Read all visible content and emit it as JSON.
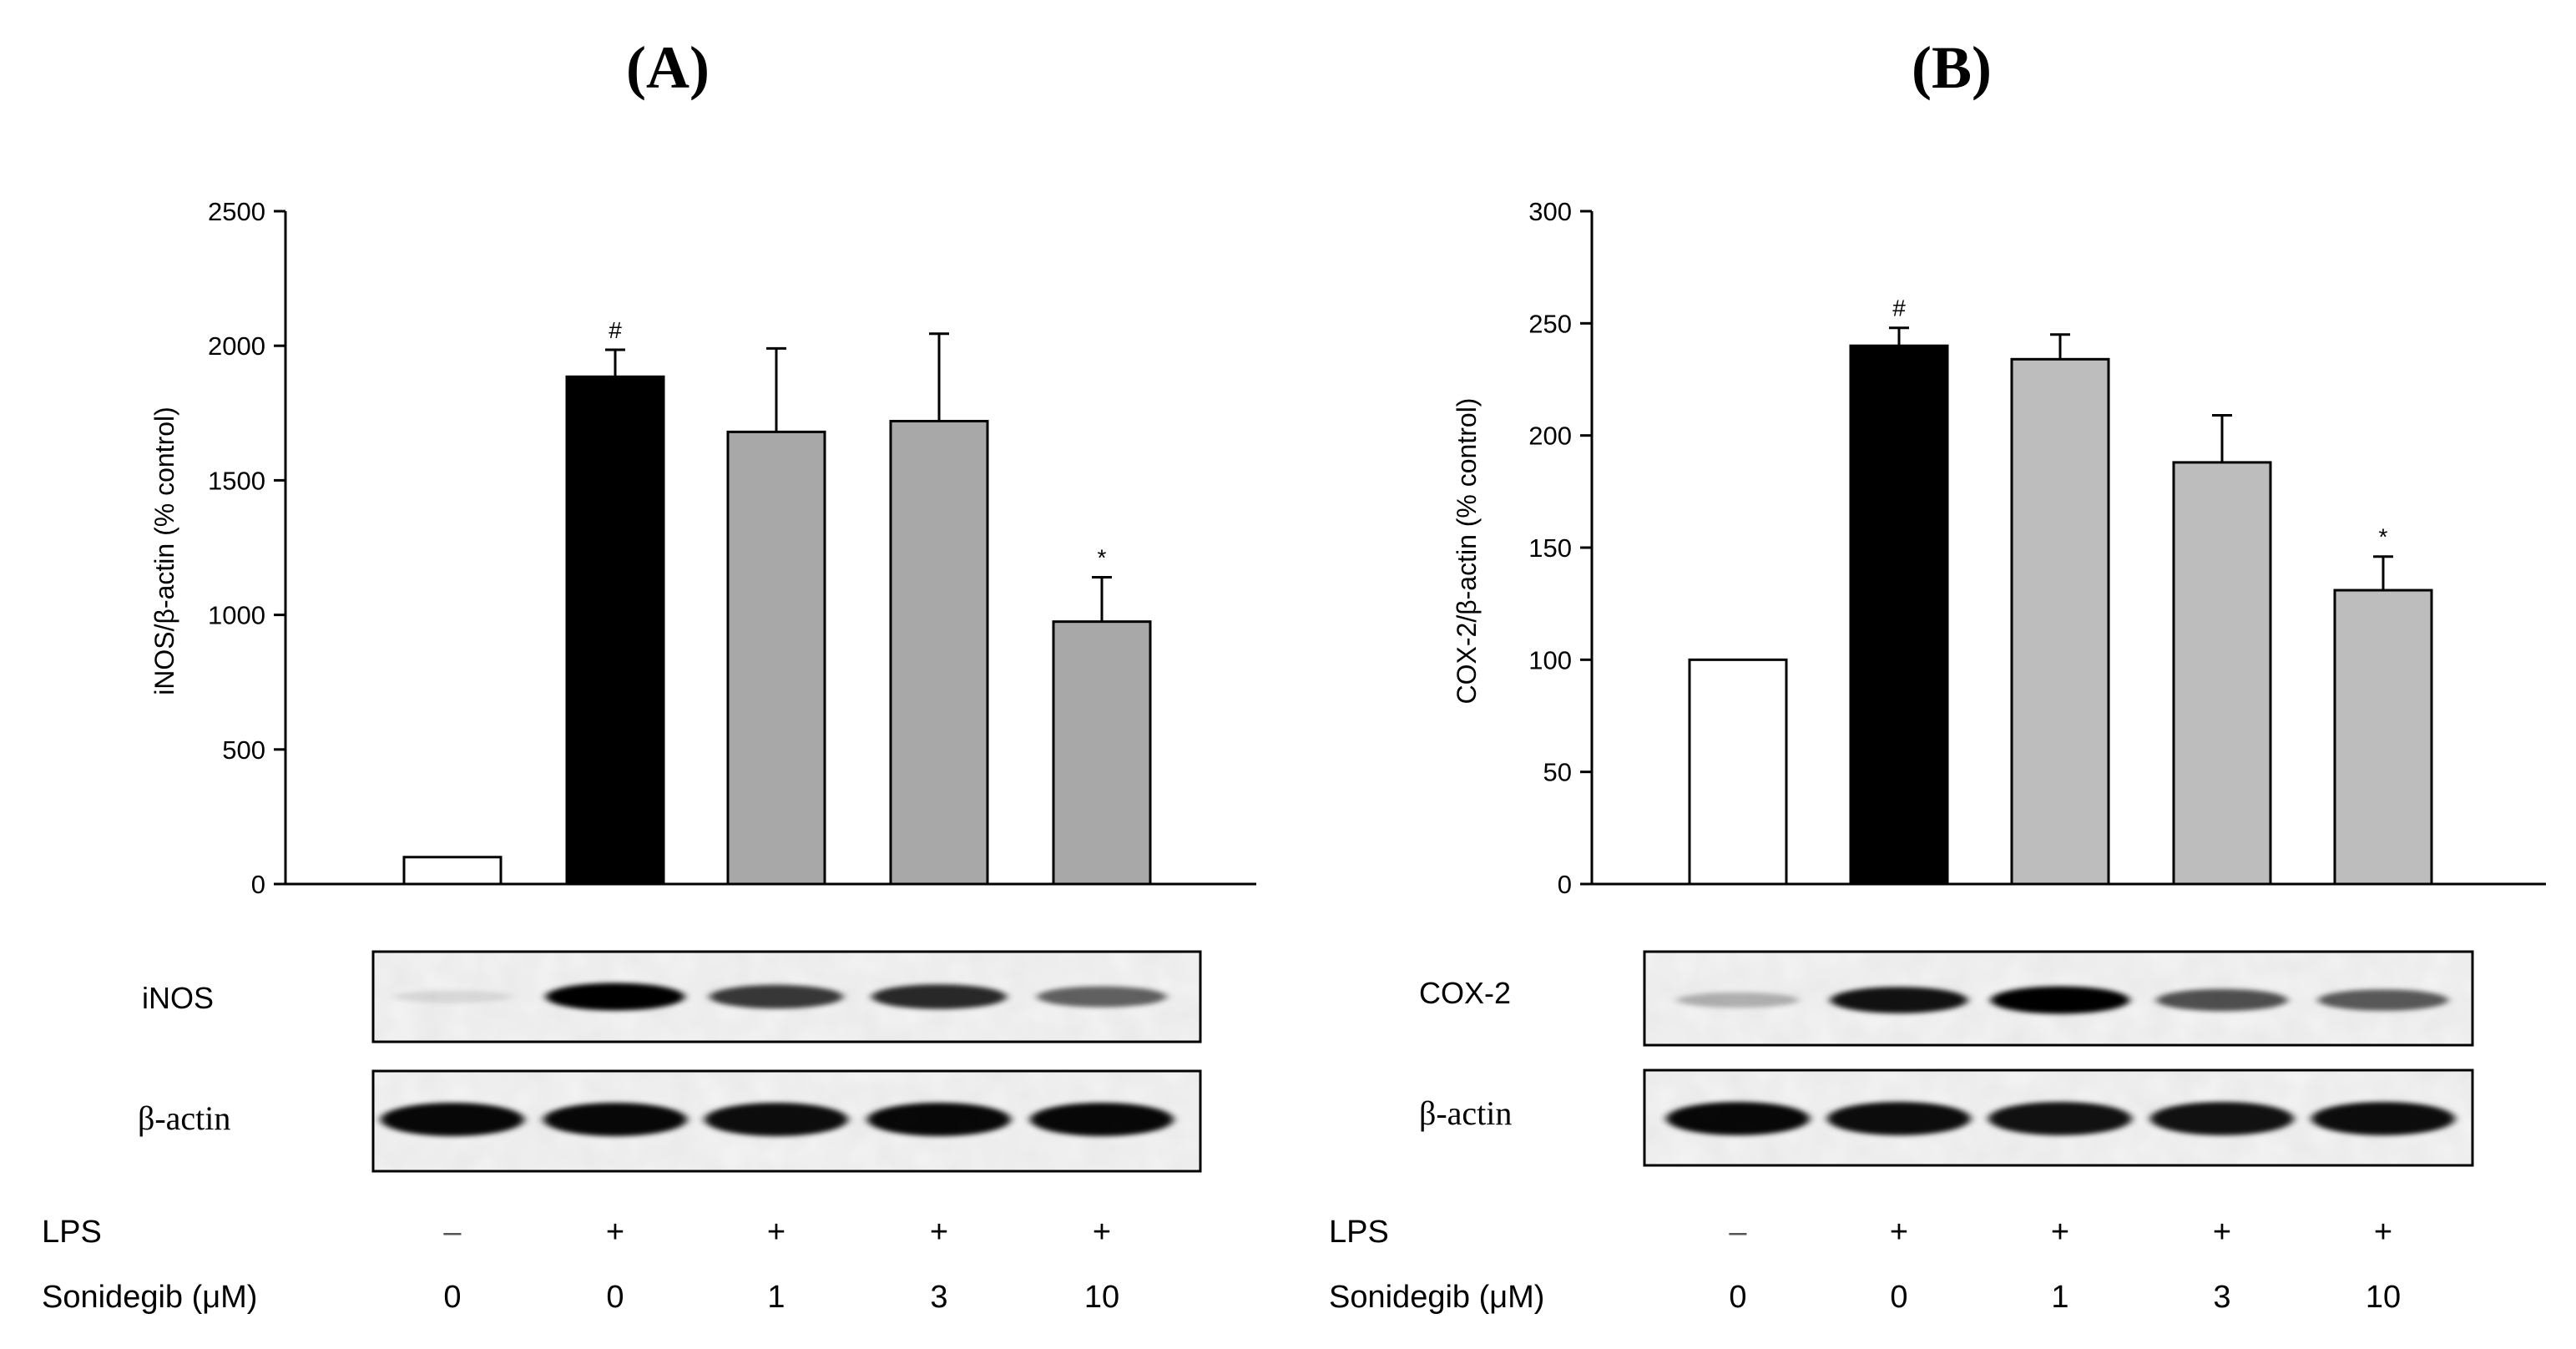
{
  "figure": {
    "panels": [
      {
        "id": "A",
        "label": "(A)",
        "blot_labels": [
          "iNOS",
          "β-actin"
        ],
        "blot_intensity": [
          [
            0.05,
            0.95,
            0.72,
            0.78,
            0.55
          ],
          [
            0.92,
            0.92,
            0.9,
            0.92,
            0.92
          ]
        ],
        "conditions": {
          "rows": [
            {
              "label": "LPS",
              "values": [
                "–",
                "+",
                "+",
                "+",
                "+"
              ]
            },
            {
              "label": "Sonidegib (μM)",
              "values": [
                "0",
                "0",
                "1",
                "3",
                "10"
              ]
            }
          ]
        }
      },
      {
        "id": "B",
        "label": "(B)",
        "blot_labels": [
          "COX-2",
          "β-actin"
        ],
        "blot_intensity": [
          [
            0.22,
            0.88,
            0.95,
            0.62,
            0.58
          ],
          [
            0.92,
            0.9,
            0.88,
            0.88,
            0.9
          ]
        ],
        "conditions": {
          "rows": [
            {
              "label": "LPS",
              "values": [
                "–",
                "+",
                "+",
                "+",
                "+"
              ]
            },
            {
              "label": "Sonidegib (μM)",
              "values": [
                "0",
                "0",
                "1",
                "3",
                "10"
              ]
            }
          ]
        }
      }
    ]
  },
  "chart_data": [
    {
      "type": "bar",
      "title": "",
      "xlabel": "",
      "ylabel": "iNOS/β-actin (% control)",
      "ylim": [
        0,
        2500
      ],
      "yticks": [
        0,
        500,
        1000,
        1500,
        2000,
        2500
      ],
      "categories": [
        "LPS – / Sonidegib 0",
        "LPS + / Sonidegib 0",
        "LPS + / Sonidegib 1",
        "LPS + / Sonidegib 3",
        "LPS + / Sonidegib 10"
      ],
      "values": [
        100,
        1885,
        1680,
        1720,
        975
      ],
      "errors": [
        0,
        100,
        310,
        325,
        165
      ],
      "bar_colors": [
        "#ffffff",
        "#000000",
        "#a8a8a8",
        "#a8a8a8",
        "#a8a8a8"
      ],
      "annotations": [
        "",
        "#",
        "",
        "",
        "*"
      ],
      "grid": false
    },
    {
      "type": "bar",
      "title": "",
      "xlabel": "",
      "ylabel": "COX-2/β-actin (% control)",
      "ylim": [
        0,
        300
      ],
      "yticks": [
        0,
        50,
        100,
        150,
        200,
        250,
        300
      ],
      "categories": [
        "LPS – / Sonidegib 0",
        "LPS + / Sonidegib 0",
        "LPS + / Sonidegib 1",
        "LPS + / Sonidegib 3",
        "LPS + / Sonidegib 10"
      ],
      "values": [
        100,
        240,
        234,
        188,
        131
      ],
      "errors": [
        0,
        8,
        11,
        21,
        15
      ],
      "bar_colors": [
        "#ffffff",
        "#000000",
        "#bdbdbd",
        "#bdbdbd",
        "#bdbdbd"
      ],
      "annotations": [
        "",
        "#",
        "",
        "",
        "*"
      ],
      "grid": false
    }
  ]
}
